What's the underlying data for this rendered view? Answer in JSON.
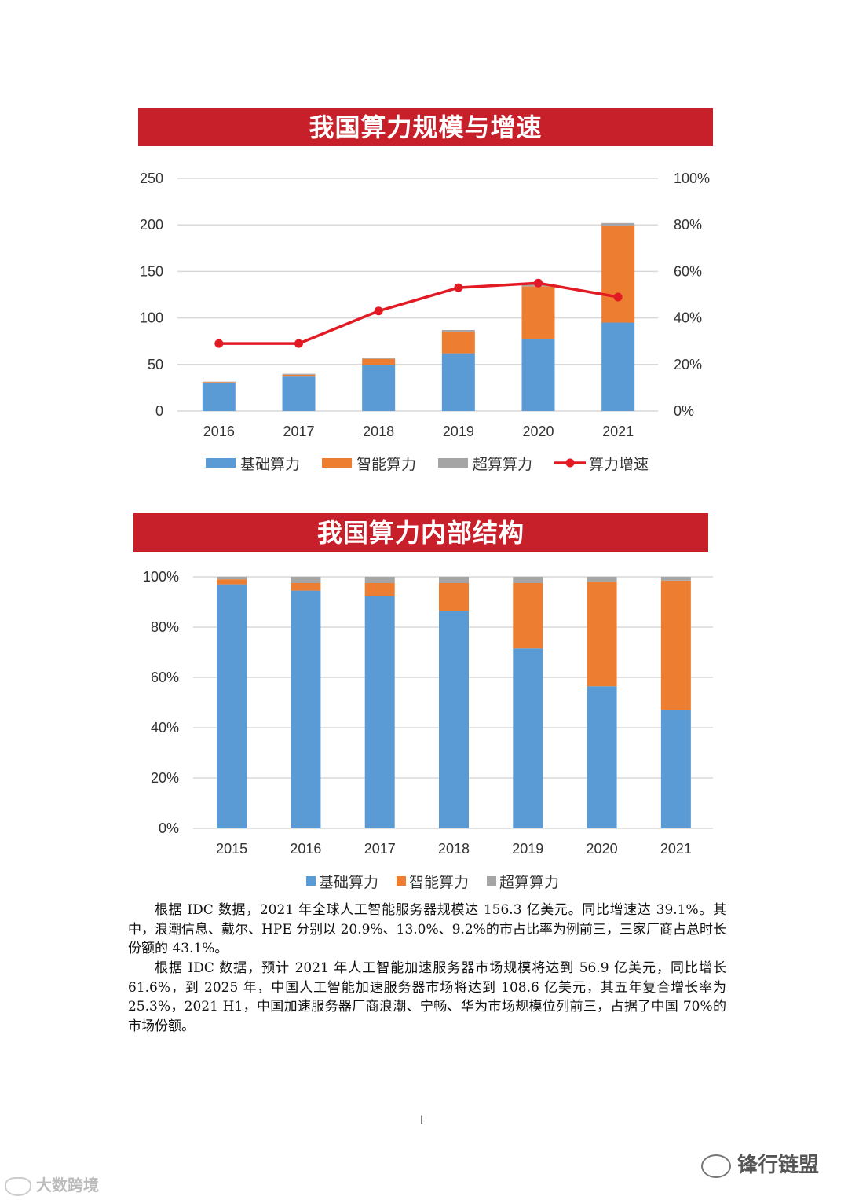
{
  "chart_data": [
    {
      "type": "bar",
      "title": "我国算力规模与增速",
      "stacked": true,
      "categories": [
        "2016",
        "2017",
        "2018",
        "2019",
        "2020",
        "2021"
      ],
      "series": [
        {
          "name": "基础算力",
          "values": [
            30,
            37,
            49,
            62,
            77,
            95
          ],
          "color": "#5b9bd5"
        },
        {
          "name": "智能算力",
          "values": [
            1,
            2,
            7,
            23,
            57,
            104
          ],
          "color": "#ed7d31"
        },
        {
          "name": "超算算力",
          "values": [
            0.5,
            1,
            1,
            2,
            2,
            3
          ],
          "color": "#a5a5a5"
        }
      ],
      "line_series": {
        "name": "算力增速",
        "values": [
          0.29,
          0.29,
          0.43,
          0.53,
          0.55,
          0.49
        ],
        "color": "#e21a24",
        "axis": "right"
      },
      "ylim": [
        0,
        250
      ],
      "yticks": [
        "0",
        "50",
        "100",
        "150",
        "200",
        "250"
      ],
      "y2lim": [
        0,
        1
      ],
      "y2ticks": [
        "0%",
        "20%",
        "40%",
        "60%",
        "80%",
        "100%"
      ],
      "grid": true,
      "legend": "bottom"
    },
    {
      "type": "bar",
      "title": "我国算力内部结构",
      "stacked": true,
      "percent": true,
      "categories": [
        "2015",
        "2016",
        "2017",
        "2018",
        "2019",
        "2020",
        "2021"
      ],
      "series": [
        {
          "name": "基础算力",
          "values": [
            0.97,
            0.945,
            0.925,
            0.865,
            0.715,
            0.565,
            0.47
          ],
          "color": "#5b9bd5"
        },
        {
          "name": "智能算力",
          "values": [
            0.02,
            0.03,
            0.05,
            0.11,
            0.26,
            0.415,
            0.515
          ],
          "color": "#ed7d31"
        },
        {
          "name": "超算算力",
          "values": [
            0.01,
            0.025,
            0.025,
            0.025,
            0.025,
            0.02,
            0.015
          ],
          "color": "#a5a5a5"
        }
      ],
      "ylim": [
        0,
        1
      ],
      "yticks": [
        "0%",
        "20%",
        "40%",
        "60%",
        "80%",
        "100%"
      ],
      "grid": true,
      "legend": "bottom"
    }
  ],
  "text": {
    "para1": "根据 IDC 数据，2021 年全球人工智能服务器规模达 156.3 亿美元。同比增速达 39.1%。其中，浪潮信息、戴尔、HPE 分别以 20.9%、13.0%、9.2%的市占比率为例前三，三家厂商占总时长份额的 43.1%。",
    "para2": "根据 IDC 数据，预计 2021 年人工智能加速服务器市场规模将达到 56.9 亿美元，同比增长 61.6%，到 2025 年，中国人工智能加速服务器市场将达到 108.6 亿美元，其五年复合增长率为 25.3%，2021 H1，中国加速服务器厂商浪潮、宁畅、华为市场规模位列前三，占据了中国 70%的市场份额。",
    "page_number": "I",
    "brand": "锋行链盟",
    "watermark_left": "大数跨境"
  }
}
